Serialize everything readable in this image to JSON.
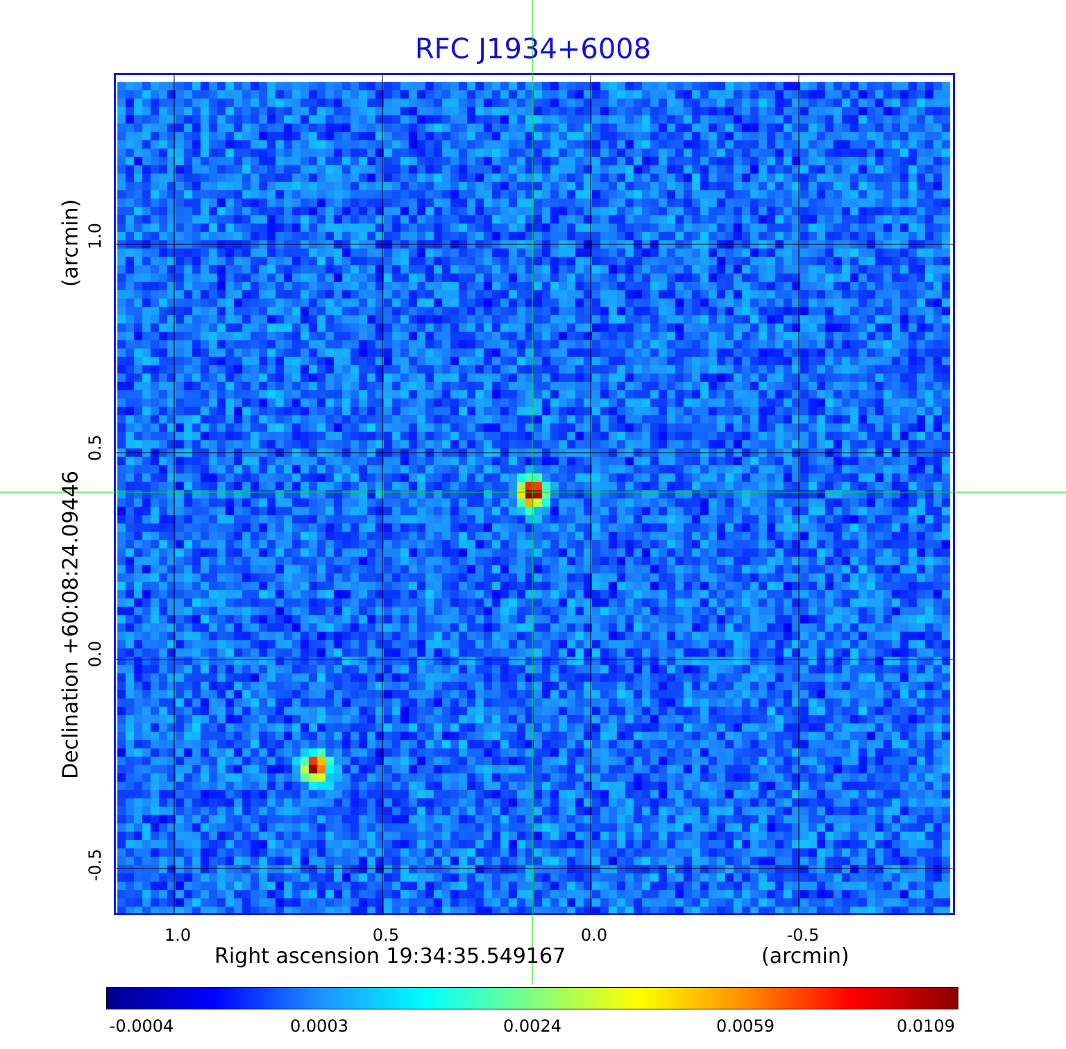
{
  "title": "RFC J1934+6008",
  "x_axis": {
    "label": "Right ascension  19:34:35.549167",
    "unit": "(arcmin)",
    "ticks": [
      "1.0",
      "0.5",
      "0.0",
      "-0.5"
    ]
  },
  "y_axis": {
    "label": "Declination  +60:08:24.09446",
    "unit": "(arcmin)",
    "ticks": [
      "1.0",
      "0.5",
      "0.0",
      "-0.5"
    ]
  },
  "colorbar": {
    "ticks": [
      "-0.0004",
      "0.0003",
      "0.0024",
      "0.0059",
      "0.0109"
    ],
    "colormap": [
      "#00008b",
      "#0000ff",
      "#1e90ff",
      "#00ffff",
      "#7fff7f",
      "#ffff00",
      "#ff8c00",
      "#ff0000",
      "#8b0000"
    ]
  },
  "colors": {
    "title": "#1010d8",
    "frame": "#1020d0",
    "crosshair": "#00dd00",
    "grid": "#000000",
    "background_noise": "#1a6ef0"
  },
  "sources": [
    {
      "ra_arcmin": 0.14,
      "dec_arcmin": 0.4,
      "peak": 0.0109
    },
    {
      "ra_arcmin": 0.66,
      "dec_arcmin": -0.26,
      "peak": 0.0085
    }
  ]
}
